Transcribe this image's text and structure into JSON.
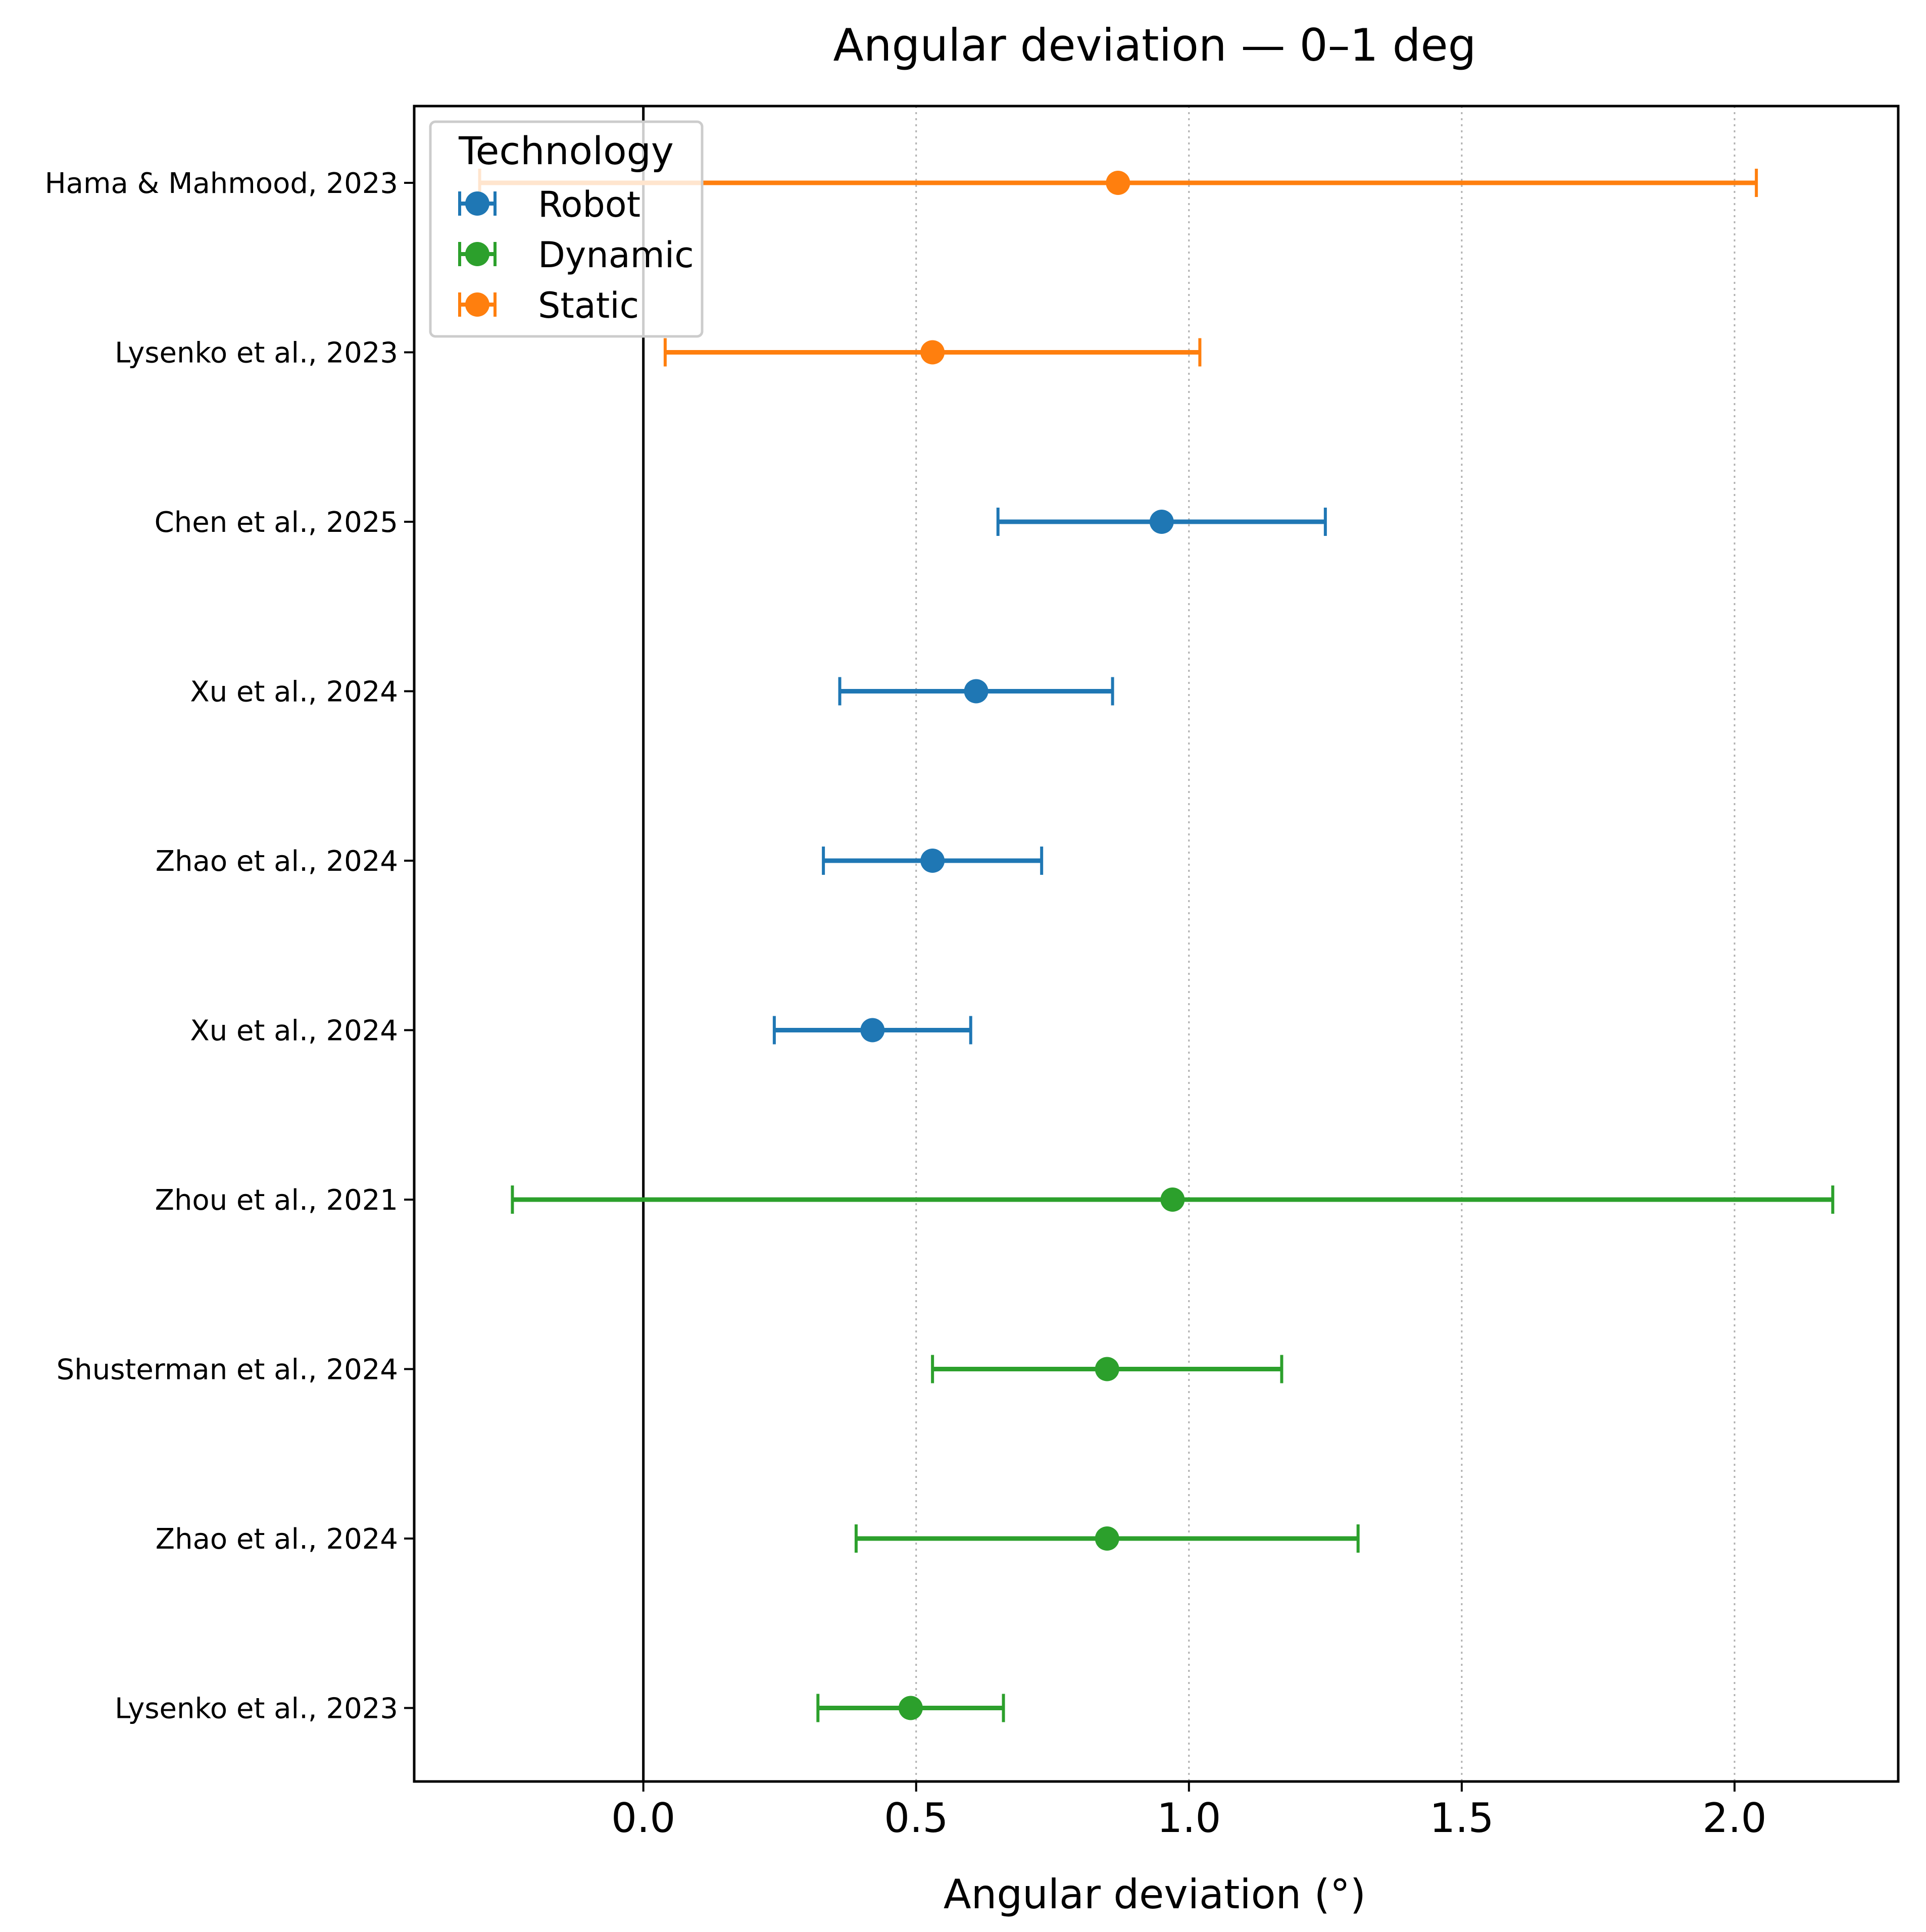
{
  "chart_data": {
    "type": "forest",
    "title": "Angular deviation — 0–1 deg",
    "xlabel": "Angular deviation (°)",
    "ylabel": "",
    "xlim": [
      -0.42,
      2.3
    ],
    "xticks": [
      0.0,
      0.5,
      1.0,
      1.5,
      2.0
    ],
    "xtick_labels": [
      "0.0",
      "0.5",
      "1.0",
      "1.5",
      "2.0"
    ],
    "x_grid": "dotted",
    "reference_line": 0.0,
    "legend": {
      "title": "Technology",
      "placement": "top-left",
      "entries": [
        {
          "label": "Robot",
          "color": "#1f77b4"
        },
        {
          "label": "Dynamic",
          "color": "#2ca02c"
        },
        {
          "label": "Static",
          "color": "#ff7f0e"
        }
      ]
    },
    "studies": [
      {
        "label": "Hama & Mahmood, 2023",
        "group": "Static",
        "estimate": 0.87,
        "lower": -0.3,
        "upper": 2.04
      },
      {
        "label": "Lysenko et al., 2023",
        "group": "Static",
        "estimate": 0.53,
        "lower": 0.04,
        "upper": 1.02
      },
      {
        "label": "Chen et al., 2025",
        "group": "Robot",
        "estimate": 0.95,
        "lower": 0.65,
        "upper": 1.25
      },
      {
        "label": "Xu et al., 2024",
        "group": "Robot",
        "estimate": 0.61,
        "lower": 0.36,
        "upper": 0.86
      },
      {
        "label": "Zhao et al., 2024",
        "group": "Robot",
        "estimate": 0.53,
        "lower": 0.33,
        "upper": 0.73
      },
      {
        "label": "Xu et al., 2024",
        "group": "Robot",
        "estimate": 0.42,
        "lower": 0.24,
        "upper": 0.6
      },
      {
        "label": "Zhou et al., 2021",
        "group": "Dynamic",
        "estimate": 0.97,
        "lower": -0.24,
        "upper": 2.18
      },
      {
        "label": "Shusterman et al., 2024",
        "group": "Dynamic",
        "estimate": 0.85,
        "lower": 0.53,
        "upper": 1.17
      },
      {
        "label": "Zhao et al., 2024",
        "group": "Dynamic",
        "estimate": 0.85,
        "lower": 0.39,
        "upper": 1.31
      },
      {
        "label": "Lysenko et al., 2023",
        "group": "Dynamic",
        "estimate": 0.49,
        "lower": 0.32,
        "upper": 0.66
      }
    ]
  }
}
